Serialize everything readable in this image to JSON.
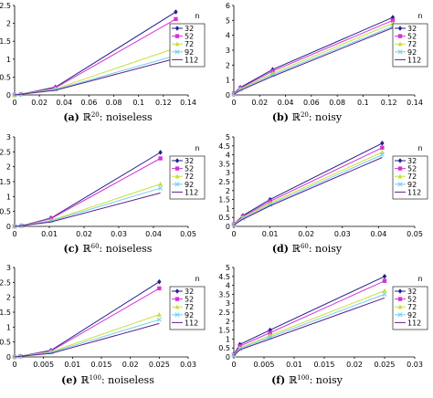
{
  "chart_data": [
    {
      "type": "line",
      "caption": {
        "letter": "(a)",
        "space": "ℝ",
        "sup": "20",
        "suffix": ": noiseless"
      },
      "xlim": [
        0,
        0.14
      ],
      "ylim": [
        0,
        2.5
      ],
      "xticks": [
        "0",
        "0.02",
        "0.04",
        "0.06",
        "0.08",
        "0.1",
        "0.12",
        "0.14"
      ],
      "yticks": [
        "0",
        "0.5",
        "1",
        "1.5",
        "2",
        "2.5"
      ],
      "legend": {
        "title": "n",
        "placement": "right"
      },
      "series": [
        {
          "name": "32",
          "color": "#1f1f8c",
          "marker": "diamond",
          "x": [
            0,
            0.005,
            0.033,
            0.13
          ],
          "y": [
            0,
            0.02,
            0.22,
            2.32
          ]
        },
        {
          "name": "52",
          "color": "#d633d6",
          "marker": "square",
          "x": [
            0,
            0.005,
            0.033,
            0.13
          ],
          "y": [
            0,
            0.02,
            0.2,
            2.12
          ]
        },
        {
          "name": "72",
          "color": "#c8e03a",
          "marker": "triangle",
          "x": [
            0,
            0.005,
            0.033,
            0.13
          ],
          "y": [
            0,
            0.02,
            0.17,
            1.31
          ]
        },
        {
          "name": "92",
          "color": "#6fd0f0",
          "marker": "x",
          "x": [
            0,
            0.005,
            0.033,
            0.13
          ],
          "y": [
            0,
            0.02,
            0.15,
            1.1
          ]
        },
        {
          "name": "112",
          "color": "#5a1f8a",
          "marker": "none",
          "x": [
            0,
            0.005,
            0.033,
            0.13
          ],
          "y": [
            0,
            0.02,
            0.13,
            1.02
          ]
        }
      ]
    },
    {
      "type": "line",
      "caption": {
        "letter": "(b)",
        "space": "ℝ",
        "sup": "20",
        "suffix": ": noisy"
      },
      "xlim": [
        0,
        0.14
      ],
      "ylim": [
        0,
        6
      ],
      "xticks": [
        "0",
        "0.02",
        "0.04",
        "0.06",
        "0.08",
        "0.1",
        "0.12",
        "0.14"
      ],
      "yticks": [
        "0",
        "1",
        "2",
        "3",
        "4",
        "5",
        "6"
      ],
      "legend": {
        "title": "n",
        "placement": "right"
      },
      "series": [
        {
          "name": "32",
          "color": "#1f1f8c",
          "marker": "diamond",
          "x": [
            0,
            0.005,
            0.03,
            0.123
          ],
          "y": [
            0.1,
            0.5,
            1.7,
            5.2
          ]
        },
        {
          "name": "52",
          "color": "#d633d6",
          "marker": "square",
          "x": [
            0,
            0.005,
            0.03,
            0.123
          ],
          "y": [
            0.1,
            0.45,
            1.6,
            5.0
          ]
        },
        {
          "name": "72",
          "color": "#c8e03a",
          "marker": "triangle",
          "x": [
            0,
            0.005,
            0.03,
            0.123
          ],
          "y": [
            0.05,
            0.4,
            1.45,
            4.8
          ]
        },
        {
          "name": "92",
          "color": "#6fd0f0",
          "marker": "x",
          "x": [
            0,
            0.005,
            0.03,
            0.123
          ],
          "y": [
            0.05,
            0.35,
            1.35,
            4.6
          ]
        },
        {
          "name": "112",
          "color": "#5a1f8a",
          "marker": "none",
          "x": [
            0,
            0.005,
            0.03,
            0.123
          ],
          "y": [
            0.05,
            0.3,
            1.25,
            4.5
          ]
        }
      ]
    },
    {
      "type": "line",
      "caption": {
        "letter": "(c)",
        "space": "ℝ",
        "sup": "60",
        "suffix": ": noiseless"
      },
      "xlim": [
        0,
        0.05
      ],
      "ylim": [
        0,
        3
      ],
      "xticks": [
        "0",
        "0.01",
        "0.02",
        "0.03",
        "0.04",
        "0.05"
      ],
      "yticks": [
        "0",
        "0.5",
        "1",
        "1.5",
        "2",
        "2.5",
        "3"
      ],
      "legend": {
        "title": "n",
        "placement": "right"
      },
      "series": [
        {
          "name": "32",
          "color": "#1f1f8c",
          "marker": "diamond",
          "x": [
            0,
            0.002,
            0.0105,
            0.042
          ],
          "y": [
            0,
            0.02,
            0.28,
            2.48
          ]
        },
        {
          "name": "52",
          "color": "#d633d6",
          "marker": "square",
          "x": [
            0,
            0.002,
            0.0105,
            0.042
          ],
          "y": [
            0,
            0.02,
            0.26,
            2.28
          ]
        },
        {
          "name": "72",
          "color": "#c8e03a",
          "marker": "triangle",
          "x": [
            0,
            0.002,
            0.0105,
            0.042
          ],
          "y": [
            0,
            0.02,
            0.2,
            1.42
          ]
        },
        {
          "name": "92",
          "color": "#6fd0f0",
          "marker": "x",
          "x": [
            0,
            0.002,
            0.0105,
            0.042
          ],
          "y": [
            0,
            0.02,
            0.18,
            1.28
          ]
        },
        {
          "name": "112",
          "color": "#5a1f8a",
          "marker": "none",
          "x": [
            0,
            0.002,
            0.0105,
            0.042
          ],
          "y": [
            0,
            0.02,
            0.15,
            1.12
          ]
        }
      ]
    },
    {
      "type": "line",
      "caption": {
        "letter": "(d)",
        "space": "ℝ",
        "sup": "60",
        "suffix": ": noisy"
      },
      "xlim": [
        0,
        0.05
      ],
      "ylim": [
        0,
        5
      ],
      "xticks": [
        "0",
        "0.01",
        "0.02",
        "0.03",
        "0.04",
        "0.05"
      ],
      "yticks": [
        "0",
        "0.5",
        "1",
        "1.5",
        "2",
        "2.5",
        "3",
        "3.5",
        "4",
        "4.5",
        "5"
      ],
      "legend": {
        "title": "n",
        "placement": "right"
      },
      "series": [
        {
          "name": "32",
          "color": "#1f1f8c",
          "marker": "diamond",
          "x": [
            0,
            0.0025,
            0.01,
            0.041
          ],
          "y": [
            0.12,
            0.6,
            1.5,
            4.65
          ]
        },
        {
          "name": "52",
          "color": "#d633d6",
          "marker": "square",
          "x": [
            0,
            0.0025,
            0.01,
            0.041
          ],
          "y": [
            0.12,
            0.55,
            1.4,
            4.4
          ]
        },
        {
          "name": "72",
          "color": "#c8e03a",
          "marker": "triangle",
          "x": [
            0,
            0.0025,
            0.01,
            0.041
          ],
          "y": [
            0.1,
            0.5,
            1.3,
            4.15
          ]
        },
        {
          "name": "92",
          "color": "#6fd0f0",
          "marker": "x",
          "x": [
            0,
            0.0025,
            0.01,
            0.041
          ],
          "y": [
            0.1,
            0.45,
            1.22,
            4.0
          ]
        },
        {
          "name": "112",
          "color": "#5a1f8a",
          "marker": "none",
          "x": [
            0,
            0.0025,
            0.01,
            0.041
          ],
          "y": [
            0.08,
            0.4,
            1.15,
            3.85
          ]
        }
      ]
    },
    {
      "type": "line",
      "caption": {
        "letter": "(e)",
        "space": "ℝ",
        "sup": "100",
        "suffix": ": noiseless"
      },
      "xlim": [
        0,
        0.03
      ],
      "ylim": [
        0,
        3
      ],
      "xticks": [
        "0",
        "0.005",
        "0.01",
        "0.015",
        "0.02",
        "0.025",
        "0.03"
      ],
      "yticks": [
        "0",
        "0.5",
        "1",
        "1.5",
        "2",
        "2.5",
        "3"
      ],
      "legend": {
        "title": "n",
        "placement": "right"
      },
      "series": [
        {
          "name": "32",
          "color": "#1f1f8c",
          "marker": "diamond",
          "x": [
            0,
            0.001,
            0.0063,
            0.025
          ],
          "y": [
            0,
            0.02,
            0.22,
            2.52
          ]
        },
        {
          "name": "52",
          "color": "#d633d6",
          "marker": "square",
          "x": [
            0,
            0.001,
            0.0063,
            0.025
          ],
          "y": [
            0,
            0.02,
            0.2,
            2.3
          ]
        },
        {
          "name": "72",
          "color": "#c8e03a",
          "marker": "triangle",
          "x": [
            0,
            0.001,
            0.0063,
            0.025
          ],
          "y": [
            0,
            0.02,
            0.17,
            1.42
          ]
        },
        {
          "name": "92",
          "color": "#6fd0f0",
          "marker": "x",
          "x": [
            0,
            0.001,
            0.0063,
            0.025
          ],
          "y": [
            0,
            0.02,
            0.15,
            1.25
          ]
        },
        {
          "name": "112",
          "color": "#5a1f8a",
          "marker": "none",
          "x": [
            0,
            0.001,
            0.0063,
            0.025
          ],
          "y": [
            0,
            0.02,
            0.12,
            1.12
          ]
        }
      ]
    },
    {
      "type": "line",
      "caption": {
        "letter": "(f)",
        "space": "ℝ",
        "sup": "100",
        "suffix": ": noisy"
      },
      "xlim": [
        0,
        0.03
      ],
      "ylim": [
        0,
        5
      ],
      "xticks": [
        "0",
        "0.005",
        "0.01",
        "0.015",
        "0.02",
        "0.025",
        "0.03"
      ],
      "yticks": [
        "0",
        "0.5",
        "1",
        "1.5",
        "2",
        "2.5",
        "3",
        "3.5",
        "4",
        "4.5",
        "5"
      ],
      "legend": {
        "title": "n",
        "placement": "right"
      },
      "series": [
        {
          "name": "32",
          "color": "#1f1f8c",
          "marker": "diamond",
          "x": [
            0,
            0.001,
            0.006,
            0.025
          ],
          "y": [
            0.15,
            0.7,
            1.5,
            4.5
          ]
        },
        {
          "name": "52",
          "color": "#d633d6",
          "marker": "square",
          "x": [
            0,
            0.001,
            0.006,
            0.025
          ],
          "y": [
            0.12,
            0.6,
            1.35,
            4.25
          ]
        },
        {
          "name": "72",
          "color": "#c8e03a",
          "marker": "triangle",
          "x": [
            0,
            0.001,
            0.006,
            0.025
          ],
          "y": [
            0.1,
            0.5,
            1.2,
            3.7
          ]
        },
        {
          "name": "92",
          "color": "#6fd0f0",
          "marker": "x",
          "x": [
            0,
            0.001,
            0.006,
            0.025
          ],
          "y": [
            0.1,
            0.45,
            1.1,
            3.5
          ]
        },
        {
          "name": "112",
          "color": "#5a1f8a",
          "marker": "none",
          "x": [
            0,
            0.001,
            0.006,
            0.025
          ],
          "y": [
            0.08,
            0.4,
            1.0,
            3.3
          ]
        }
      ]
    }
  ]
}
